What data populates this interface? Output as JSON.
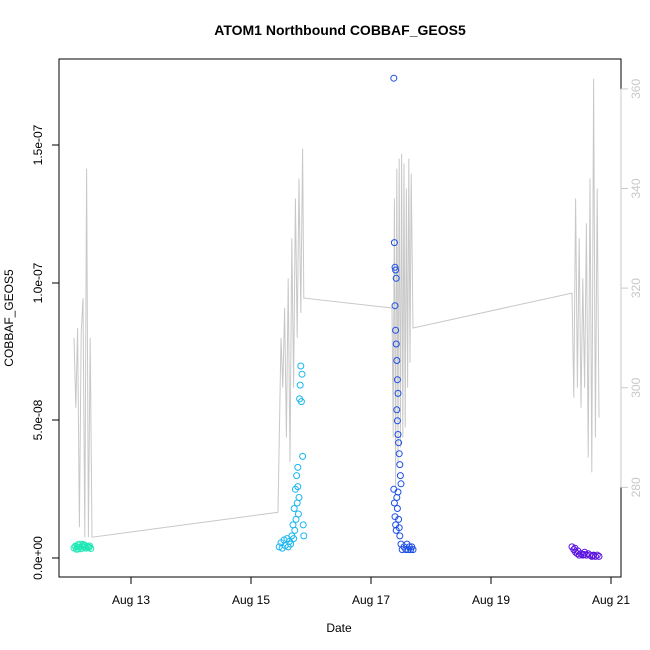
{
  "chart_data": {
    "type": "scatter",
    "title": "ATOM1 Northbound COBBAF_GEOS5",
    "xlabel": "Date",
    "ylabel": "COBBAF_GEOS5",
    "x_ticks": [
      "Aug 13",
      "Aug 15",
      "Aug 17",
      "Aug 19",
      "Aug 21"
    ],
    "y_ticks": [
      "0.0e+00",
      "5.0e-08",
      "1.0e-07",
      "1.5e-07"
    ],
    "y2_ticks": [
      "280",
      "300",
      "320",
      "340",
      "360"
    ],
    "ylim": [
      -7e-09,
      1.82e-07
    ],
    "y2lim": [
      262,
      366
    ],
    "secondary_series": {
      "name": "",
      "color": "#c8c8c8",
      "points": [
        [
          12.05,
          310
        ],
        [
          12.08,
          296
        ],
        [
          12.11,
          312
        ],
        [
          12.14,
          272
        ],
        [
          12.17,
          311
        ],
        [
          12.2,
          318
        ],
        [
          12.23,
          270
        ],
        [
          12.26,
          344
        ],
        [
          12.29,
          270
        ],
        [
          12.32,
          310
        ],
        [
          12.35,
          270
        ],
        [
          15.45,
          275
        ],
        [
          15.5,
          310
        ],
        [
          15.53,
          300
        ],
        [
          15.56,
          316
        ],
        [
          15.59,
          290
        ],
        [
          15.62,
          322
        ],
        [
          15.65,
          285
        ],
        [
          15.68,
          330
        ],
        [
          15.71,
          300
        ],
        [
          15.74,
          338
        ],
        [
          15.77,
          310
        ],
        [
          15.8,
          342
        ],
        [
          15.83,
          315
        ],
        [
          15.86,
          348
        ],
        [
          15.88,
          318
        ],
        [
          17.35,
          316
        ],
        [
          17.37,
          290
        ],
        [
          17.39,
          338
        ],
        [
          17.41,
          280
        ],
        [
          17.43,
          344
        ],
        [
          17.45,
          285
        ],
        [
          17.47,
          346
        ],
        [
          17.49,
          288
        ],
        [
          17.51,
          347
        ],
        [
          17.53,
          290
        ],
        [
          17.55,
          345
        ],
        [
          17.57,
          292
        ],
        [
          17.59,
          340
        ],
        [
          17.61,
          300
        ],
        [
          17.63,
          346
        ],
        [
          17.65,
          305
        ],
        [
          17.67,
          343
        ],
        [
          17.7,
          312
        ],
        [
          20.35,
          319
        ],
        [
          20.38,
          298
        ],
        [
          20.41,
          338
        ],
        [
          20.44,
          300
        ],
        [
          20.47,
          330
        ],
        [
          20.5,
          296
        ],
        [
          20.53,
          322
        ],
        [
          20.56,
          300
        ],
        [
          20.59,
          333
        ],
        [
          20.62,
          286
        ],
        [
          20.65,
          342
        ],
        [
          20.68,
          283
        ],
        [
          20.71,
          362
        ],
        [
          20.74,
          290
        ],
        [
          20.77,
          340
        ],
        [
          20.8,
          294
        ]
      ]
    },
    "series": [
      {
        "name": "",
        "color": "#1fe8b5",
        "points": [
          [
            12.05,
            3.6e-09
          ],
          [
            12.07,
            4.2e-09
          ],
          [
            12.09,
            3.1e-09
          ],
          [
            12.11,
            4.8e-09
          ],
          [
            12.13,
            3.9e-09
          ],
          [
            12.15,
            5e-09
          ],
          [
            12.17,
            3.3e-09
          ],
          [
            12.19,
            4.4e-09
          ],
          [
            12.21,
            3.8e-09
          ],
          [
            12.23,
            4.6e-09
          ],
          [
            12.25,
            3.5e-09
          ],
          [
            12.27,
            4.1e-09
          ],
          [
            12.29,
            3.7e-09
          ],
          [
            12.31,
            4.3e-09
          ],
          [
            12.33,
            3.4e-09
          ],
          [
            12.1,
            4e-09
          ],
          [
            12.2,
            4.9e-09
          ],
          [
            12.3,
            3.9e-09
          ],
          [
            12.12,
            3.2e-09
          ],
          [
            12.22,
            4.5e-09
          ]
        ]
      },
      {
        "name": "",
        "color": "#1ab6f0",
        "points": [
          [
            15.47,
            4e-09
          ],
          [
            15.5,
            5.5e-09
          ],
          [
            15.52,
            3.5e-09
          ],
          [
            15.55,
            6.5e-09
          ],
          [
            15.57,
            4.5e-09
          ],
          [
            15.6,
            7e-09
          ],
          [
            15.62,
            4e-09
          ],
          [
            15.64,
            6e-09
          ],
          [
            15.66,
            5e-09
          ],
          [
            15.68,
            8e-09
          ],
          [
            15.7,
            1.2e-08
          ],
          [
            15.71,
            7e-09
          ],
          [
            15.72,
            1.8e-08
          ],
          [
            15.73,
            1e-08
          ],
          [
            15.74,
            2.5e-08
          ],
          [
            15.75,
            1.4e-08
          ],
          [
            15.76,
            3e-08
          ],
          [
            15.77,
            2e-08
          ],
          [
            15.78,
            3.3e-08
          ],
          [
            15.79,
            1.6e-08
          ],
          [
            15.8,
            2.2e-08
          ],
          [
            15.81,
            5.8e-08
          ],
          [
            15.82,
            6.3e-08
          ],
          [
            15.83,
            7e-08
          ],
          [
            15.84,
            5.7e-08
          ],
          [
            15.85,
            6.7e-08
          ],
          [
            15.86,
            3.7e-08
          ],
          [
            15.87,
            1.2e-08
          ],
          [
            15.88,
            8e-09
          ],
          [
            15.78,
            2.6e-08
          ]
        ]
      },
      {
        "name": "",
        "color": "#1d4fe6",
        "points": [
          [
            17.38,
            1.75e-07
          ],
          [
            17.39,
            1.15e-07
          ],
          [
            17.4,
            1.06e-07
          ],
          [
            17.41,
            1.05e-07
          ],
          [
            17.42,
            1.02e-07
          ],
          [
            17.4,
            9.2e-08
          ],
          [
            17.41,
            8.3e-08
          ],
          [
            17.42,
            7.8e-08
          ],
          [
            17.43,
            7.2e-08
          ],
          [
            17.44,
            6.5e-08
          ],
          [
            17.45,
            6e-08
          ],
          [
            17.43,
            5.4e-08
          ],
          [
            17.44,
            5e-08
          ],
          [
            17.45,
            4.5e-08
          ],
          [
            17.46,
            4.2e-08
          ],
          [
            17.47,
            3.8e-08
          ],
          [
            17.48,
            3.4e-08
          ],
          [
            17.49,
            3e-08
          ],
          [
            17.5,
            2.7e-08
          ],
          [
            17.38,
            2.5e-08
          ],
          [
            17.39,
            2e-08
          ],
          [
            17.4,
            1.5e-08
          ],
          [
            17.41,
            1.2e-08
          ],
          [
            17.42,
            1e-08
          ],
          [
            17.43,
            2.2e-08
          ],
          [
            17.44,
            1.8e-08
          ],
          [
            17.45,
            2.4e-08
          ],
          [
            17.46,
            1.4e-08
          ],
          [
            17.47,
            1.1e-08
          ],
          [
            17.48,
            8e-09
          ],
          [
            17.5,
            5e-09
          ],
          [
            17.52,
            3e-09
          ],
          [
            17.55,
            4e-09
          ],
          [
            17.58,
            3e-09
          ],
          [
            17.6,
            5e-09
          ],
          [
            17.62,
            3e-09
          ],
          [
            17.64,
            4e-09
          ],
          [
            17.66,
            3e-09
          ],
          [
            17.68,
            4e-09
          ],
          [
            17.7,
            3e-09
          ]
        ]
      },
      {
        "name": "",
        "color": "#5a12e0",
        "points": [
          [
            20.35,
            4e-09
          ],
          [
            20.38,
            3e-09
          ],
          [
            20.41,
            2e-09
          ],
          [
            20.44,
            1.5e-09
          ],
          [
            20.47,
            1e-09
          ],
          [
            20.5,
            1.5e-09
          ],
          [
            20.53,
            1e-09
          ],
          [
            20.56,
            2e-09
          ],
          [
            20.59,
            1e-09
          ],
          [
            20.62,
            1.5e-09
          ],
          [
            20.65,
            1e-09
          ],
          [
            20.68,
            5e-10
          ],
          [
            20.71,
            1e-09
          ],
          [
            20.74,
            5e-10
          ],
          [
            20.77,
            1e-09
          ],
          [
            20.8,
            5e-10
          ],
          [
            20.4,
            3.5e-09
          ],
          [
            20.45,
            2.5e-09
          ],
          [
            20.55,
            1.2e-09
          ],
          [
            20.7,
            8e-10
          ]
        ]
      }
    ]
  }
}
